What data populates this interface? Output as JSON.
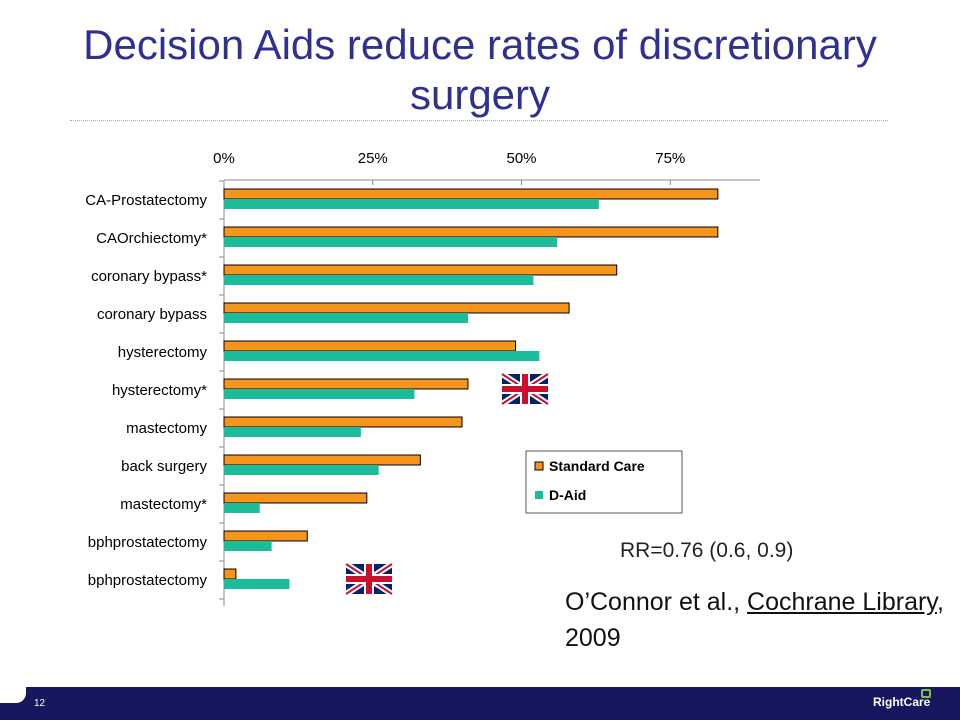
{
  "slide": {
    "title": "Decision Aids reduce rates of discretionary surgery",
    "rr_text": "RR=0.76 (0.6, 0.9)",
    "citation": {
      "author": "O’Connor et al., ",
      "journal": "Cochrane Library",
      "year": ", 2009"
    },
    "page_number": "12",
    "brand": "RightCare"
  },
  "colors": {
    "title": "#2E3192",
    "standard_care": "#F7941D",
    "d_aid": "#1ABC9C",
    "footer": "#16175E",
    "brand_accent": "#7DC242"
  },
  "flag_icons": [
    "uk-flag-icon",
    "uk-flag-icon"
  ],
  "chart_data": {
    "type": "bar",
    "orientation": "horizontal",
    "categories": [
      "CA-Prostatectomy",
      "CAOrchiectomy*",
      "coronary bypass*",
      "coronary bypass",
      "hysterectomy",
      "hysterectomy*",
      "mastectomy",
      "back surgery",
      "mastectomy*",
      "bphprostatectomy",
      "bphprostatectomy"
    ],
    "series": [
      {
        "name": "Standard Care",
        "values": [
          83,
          83,
          66,
          58,
          49,
          41,
          40,
          33,
          24,
          14,
          2
        ]
      },
      {
        "name": "D-Aid",
        "values": [
          63,
          56,
          52,
          41,
          53,
          32,
          23,
          26,
          6,
          8,
          11
        ]
      }
    ],
    "xticks": [
      "0%",
      "25%",
      "50%",
      "75%"
    ],
    "xlim": [
      0,
      90
    ],
    "grid": false,
    "legend_position": "bottom-right"
  }
}
